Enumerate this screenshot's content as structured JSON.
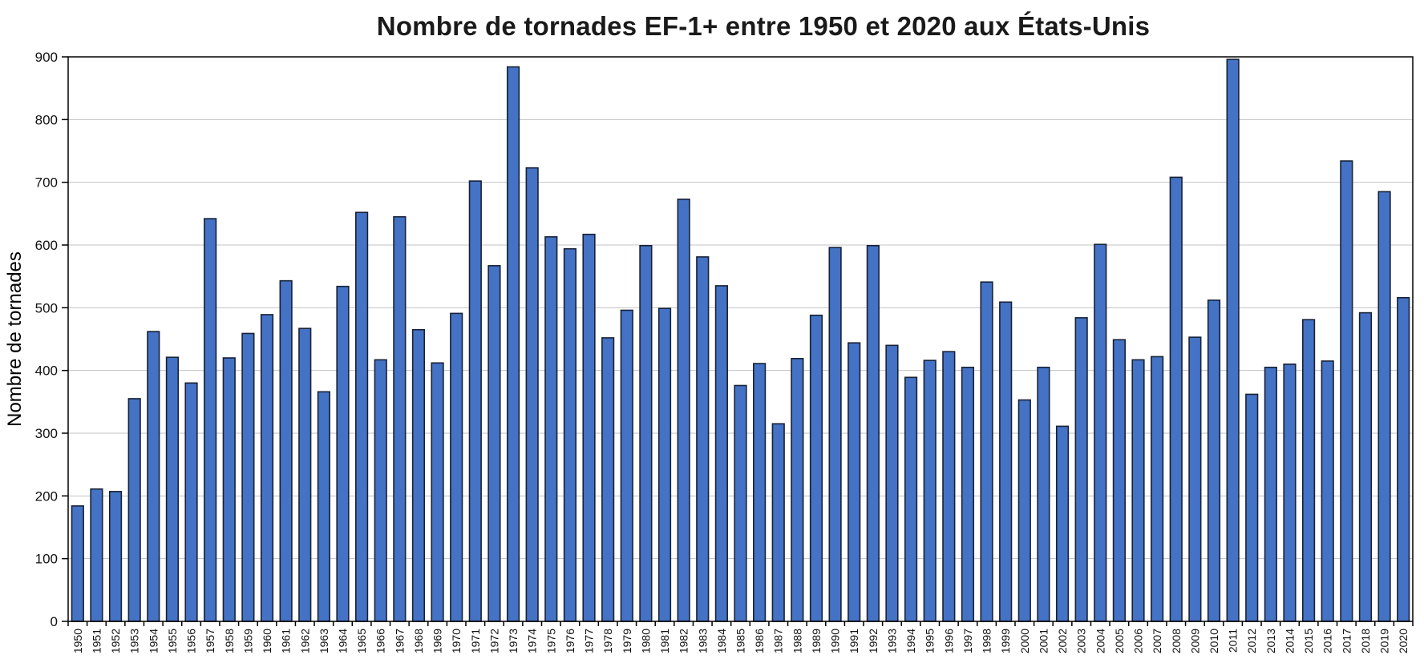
{
  "chart_data": {
    "type": "bar",
    "title": "Nombre de tornades EF-1+ entre 1950 et 2020 aux États-Unis",
    "ylabel": "Nombre de tornades",
    "xlabel": "",
    "ylim": [
      0,
      900
    ],
    "yticks": [
      0,
      100,
      200,
      300,
      400,
      500,
      600,
      700,
      800,
      900
    ],
    "grid": true,
    "legend": "none",
    "colors": {
      "bar": "#4472C4",
      "bar_border": "#172136",
      "grid": "#C3C3C3",
      "axis": "#000000",
      "text": "#111111"
    },
    "categories": [
      "1950",
      "1951",
      "1952",
      "1953",
      "1954",
      "1955",
      "1956",
      "1957",
      "1958",
      "1959",
      "1960",
      "1961",
      "1962",
      "1963",
      "1964",
      "1965",
      "1966",
      "1967",
      "1968",
      "1969",
      "1970",
      "1971",
      "1972",
      "1973",
      "1974",
      "1975",
      "1976",
      "1977",
      "1978",
      "1979",
      "1980",
      "1981",
      "1982",
      "1983",
      "1984",
      "1985",
      "1986",
      "1987",
      "1988",
      "1989",
      "1990",
      "1991",
      "1992",
      "1993",
      "1994",
      "1995",
      "1996",
      "1997",
      "1998",
      "1999",
      "2000",
      "2001",
      "2002",
      "2003",
      "2004",
      "2005",
      "2006",
      "2007",
      "2008",
      "2009",
      "2010",
      "2011",
      "2012",
      "2013",
      "2014",
      "2015",
      "2016",
      "2017",
      "2018",
      "2019",
      "2020"
    ],
    "values": [
      184,
      211,
      207,
      355,
      462,
      421,
      380,
      642,
      420,
      459,
      489,
      543,
      467,
      366,
      534,
      652,
      417,
      645,
      465,
      412,
      491,
      702,
      567,
      884,
      723,
      613,
      594,
      617,
      452,
      496,
      599,
      499,
      673,
      581,
      535,
      376,
      411,
      315,
      419,
      488,
      596,
      444,
      599,
      440,
      389,
      416,
      430,
      405,
      541,
      509,
      353,
      405,
      311,
      484,
      601,
      449,
      417,
      422,
      708,
      453,
      512,
      896,
      362,
      405,
      410,
      481,
      415,
      734,
      492,
      685,
      516
    ]
  }
}
